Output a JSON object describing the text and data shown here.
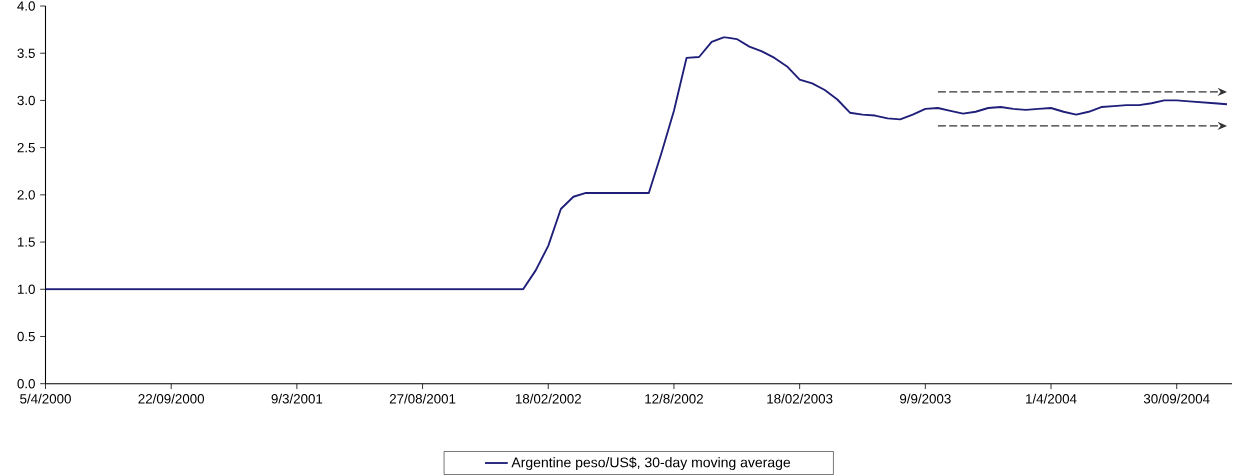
{
  "chart_data": {
    "type": "line",
    "categories": [
      "5/4/2000",
      null,
      null,
      null,
      null,
      null,
      null,
      null,
      null,
      null,
      "22/09/2000",
      null,
      null,
      null,
      null,
      null,
      null,
      null,
      null,
      null,
      "9/3/2001",
      null,
      null,
      null,
      null,
      null,
      null,
      null,
      null,
      null,
      "27/08/2001",
      null,
      null,
      null,
      null,
      null,
      null,
      null,
      null,
      null,
      "18/02/2002",
      null,
      null,
      null,
      null,
      null,
      null,
      null,
      null,
      null,
      "12/8/2002",
      null,
      null,
      null,
      null,
      null,
      null,
      null,
      null,
      null,
      "18/02/2003",
      null,
      null,
      null,
      null,
      null,
      null,
      null,
      null,
      null,
      "9/9/2003",
      null,
      null,
      null,
      null,
      null,
      null,
      null,
      null,
      null,
      "1/4/2004",
      null,
      null,
      null,
      null,
      null,
      null,
      null,
      null,
      null,
      "30/09/2004",
      null,
      null,
      null,
      null
    ],
    "ylim": [
      0,
      4
    ],
    "yticks": [
      {
        "value": 0,
        "label": "0.0"
      },
      {
        "value": 0.5,
        "label": "0.5"
      },
      {
        "value": 1,
        "label": "1.0"
      },
      {
        "value": 1.5,
        "label": "1.5"
      },
      {
        "value": 2,
        "label": "2.0"
      },
      {
        "value": 2.5,
        "label": "2.5"
      },
      {
        "value": 3,
        "label": "3.0"
      },
      {
        "value": 3.5,
        "label": "3.5"
      },
      {
        "value": 4,
        "label": "4.0"
      }
    ],
    "legend": "bottom",
    "series": [
      {
        "name": "Argentine peso/US$, 30-day moving average",
        "color": "#1f1f7a",
        "line_style": "solid",
        "values": [
          1.0,
          1.0,
          1.0,
          1.0,
          1.0,
          1.0,
          1.0,
          1.0,
          1.0,
          1.0,
          1.0,
          1.0,
          1.0,
          1.0,
          1.0,
          1.0,
          1.0,
          1.0,
          1.0,
          1.0,
          1.0,
          1.0,
          1.0,
          1.0,
          1.0,
          1.0,
          1.0,
          1.0,
          1.0,
          1.0,
          1.0,
          1.0,
          1.0,
          1.0,
          1.0,
          1.0,
          1.0,
          1.0,
          1.0,
          1.2,
          1.46,
          1.85,
          1.98,
          2.02,
          2.02,
          2.02,
          2.02,
          2.02,
          2.02,
          2.44,
          2.89,
          3.45,
          3.46,
          3.62,
          3.67,
          3.65,
          3.57,
          3.52,
          3.45,
          3.36,
          3.22,
          3.18,
          3.11,
          3.01,
          2.87,
          2.85,
          2.84,
          2.81,
          2.8,
          2.85,
          2.91,
          2.92,
          2.89,
          2.86,
          2.88,
          2.92,
          2.93,
          2.91,
          2.9,
          2.91,
          2.92,
          2.88,
          2.85,
          2.88,
          2.93,
          2.94,
          2.95,
          2.95,
          2.97,
          3.0,
          3.0,
          2.99,
          2.98,
          2.97,
          2.96
        ]
      },
      {
        "color": "#333333",
        "line_style": "dashed",
        "values": [
          null,
          null,
          null,
          null,
          null,
          null,
          null,
          null,
          null,
          null,
          null,
          null,
          null,
          null,
          null,
          null,
          null,
          null,
          null,
          null,
          null,
          null,
          null,
          null,
          null,
          null,
          null,
          null,
          null,
          null,
          null,
          null,
          null,
          null,
          null,
          null,
          null,
          null,
          null,
          null,
          null,
          null,
          null,
          null,
          null,
          null,
          null,
          null,
          null,
          null,
          null,
          null,
          null,
          null,
          null,
          null,
          null,
          null,
          null,
          null,
          null,
          null,
          null,
          null,
          null,
          null,
          null,
          null,
          null,
          null,
          null,
          3.09,
          3.09,
          3.09,
          3.09,
          3.09,
          3.09,
          3.09,
          3.09,
          3.09,
          3.09,
          3.09,
          3.09,
          3.09,
          3.09,
          3.09,
          3.09,
          3.09,
          3.09,
          3.09,
          3.09,
          3.09,
          3.09,
          3.09,
          3.09
        ]
      },
      {
        "color": "#333333",
        "line_style": "dashed",
        "values": [
          null,
          null,
          null,
          null,
          null,
          null,
          null,
          null,
          null,
          null,
          null,
          null,
          null,
          null,
          null,
          null,
          null,
          null,
          null,
          null,
          null,
          null,
          null,
          null,
          null,
          null,
          null,
          null,
          null,
          null,
          null,
          null,
          null,
          null,
          null,
          null,
          null,
          null,
          null,
          null,
          null,
          null,
          null,
          null,
          null,
          null,
          null,
          null,
          null,
          null,
          null,
          null,
          null,
          null,
          null,
          null,
          null,
          null,
          null,
          null,
          null,
          null,
          null,
          null,
          null,
          null,
          null,
          null,
          null,
          null,
          null,
          2.73,
          2.73,
          2.73,
          2.73,
          2.73,
          2.73,
          2.73,
          2.73,
          2.73,
          2.73,
          2.73,
          2.73,
          2.73,
          2.73,
          2.73,
          2.73,
          2.73,
          2.73,
          2.73,
          2.73,
          2.73,
          2.73,
          2.73,
          2.73
        ]
      }
    ]
  }
}
